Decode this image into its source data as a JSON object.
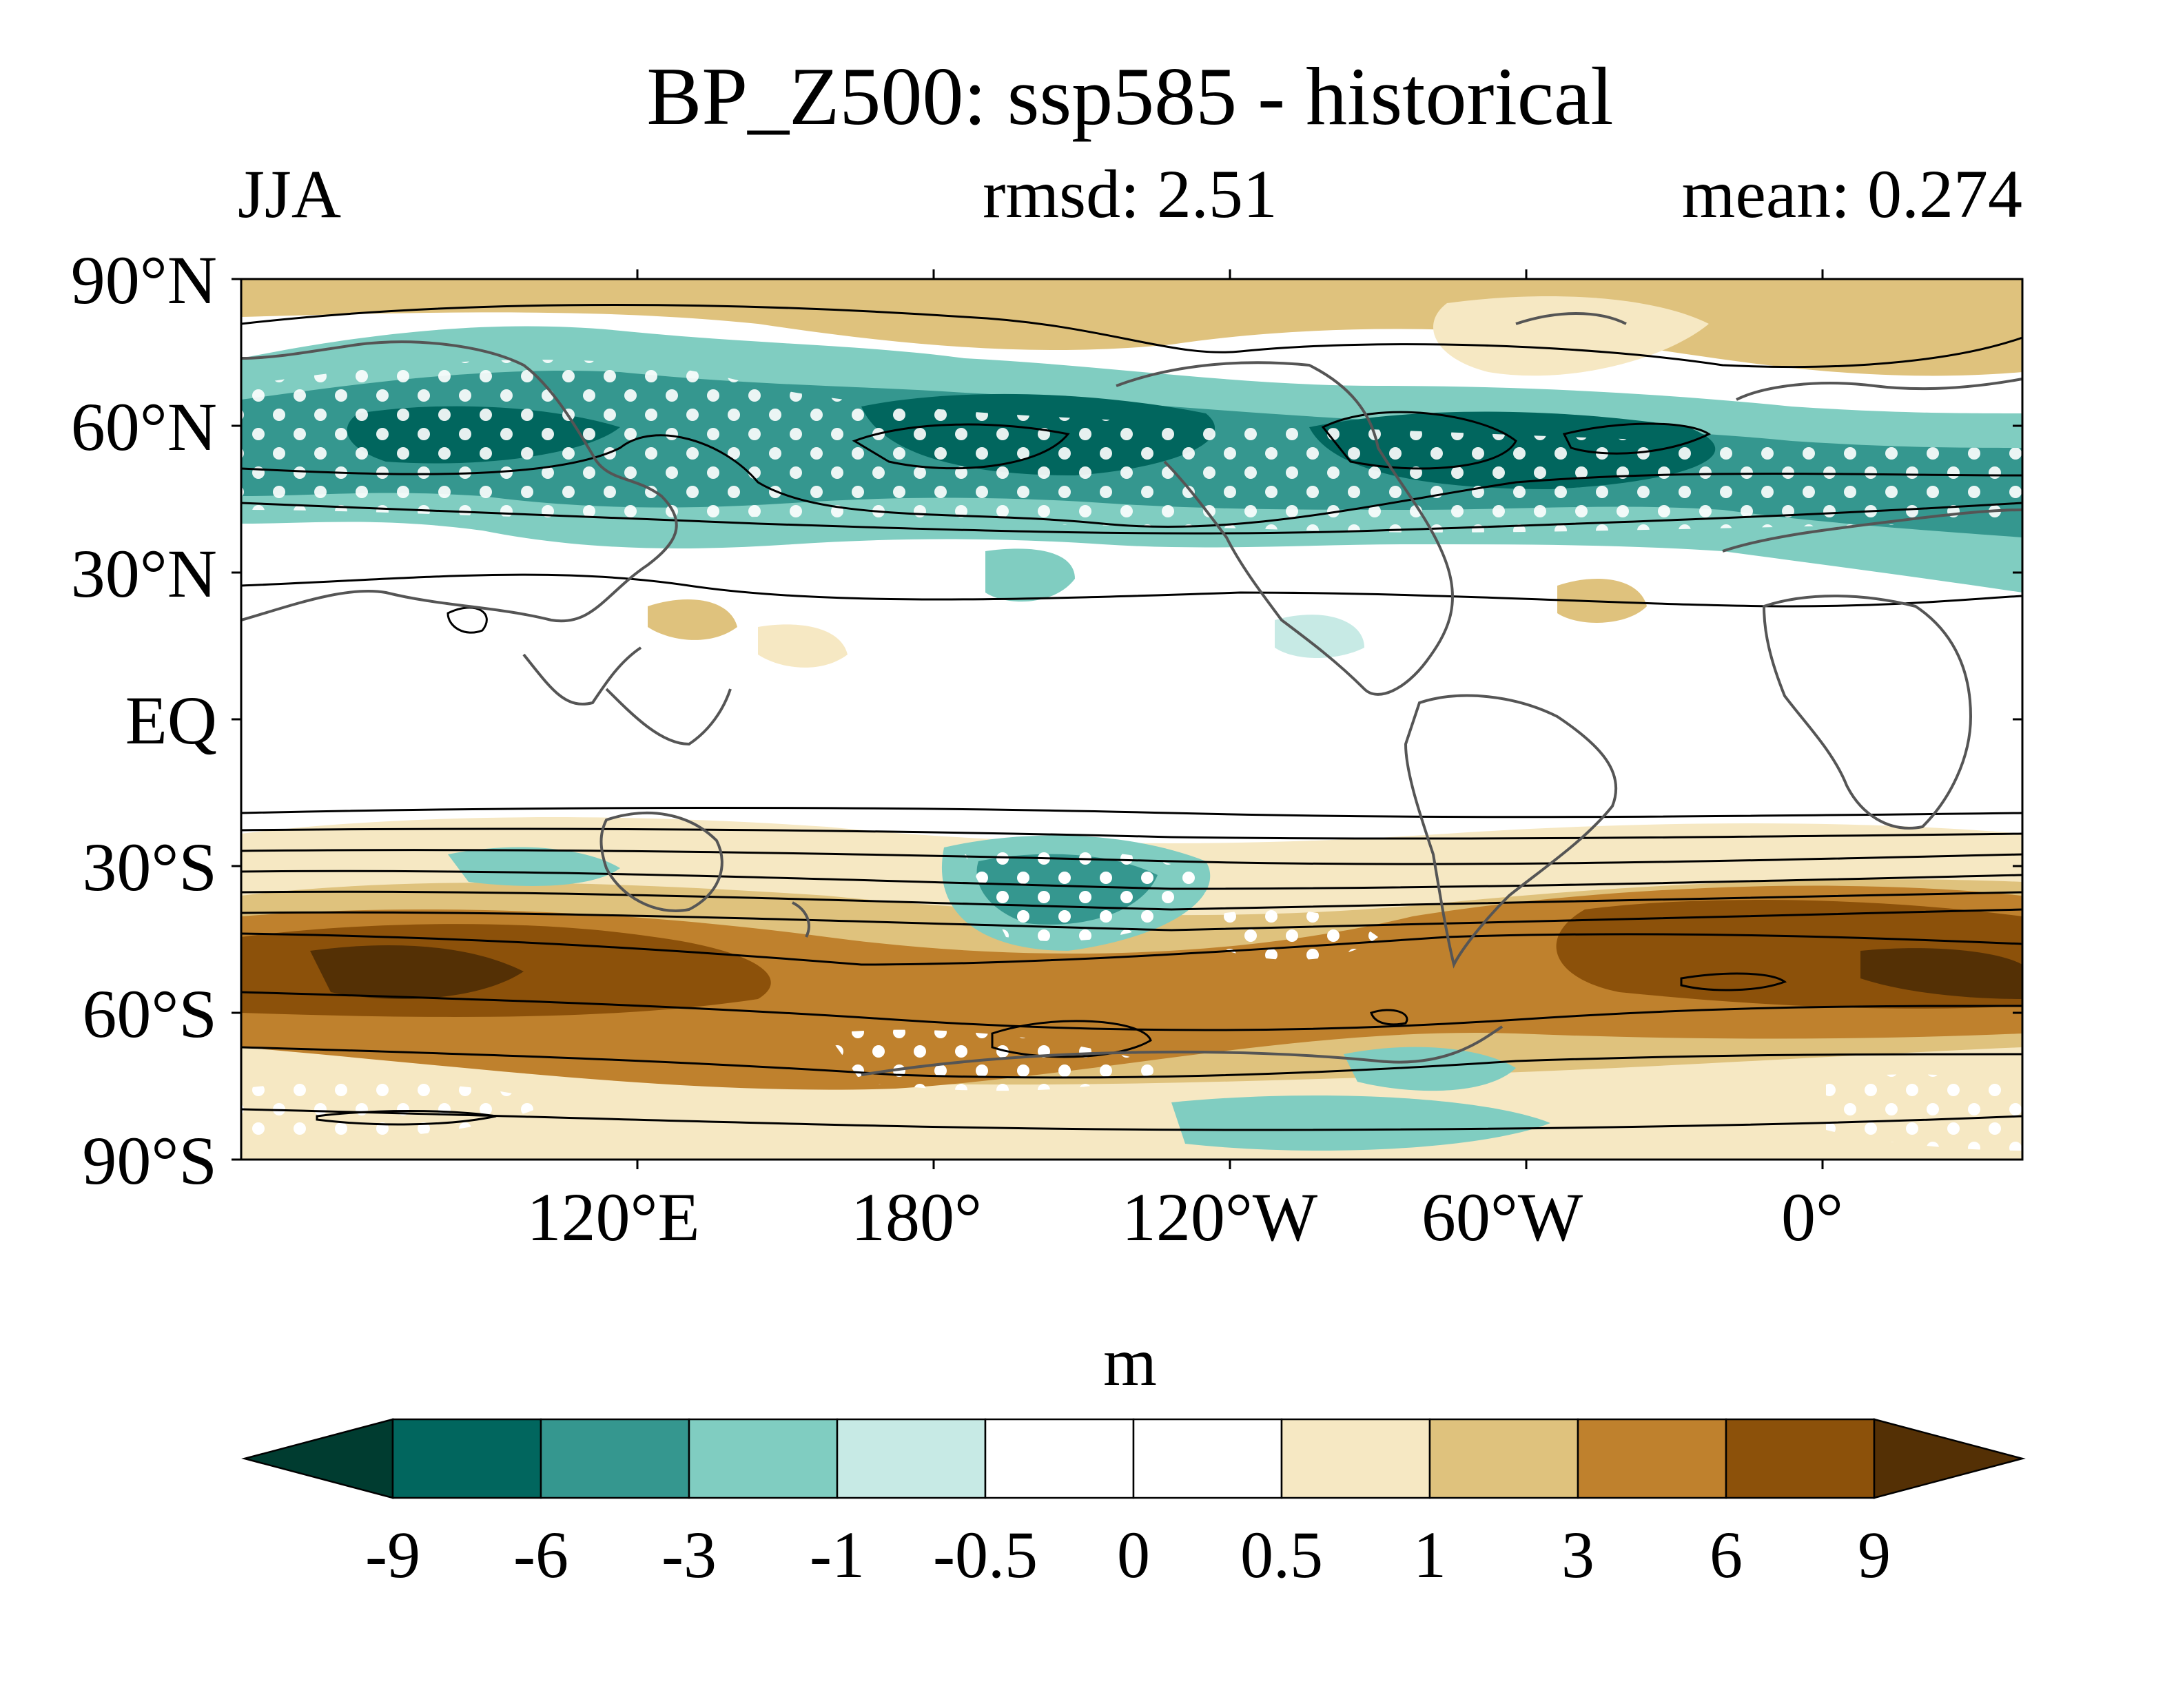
{
  "title": "BP_Z500: ssp585 - historical",
  "season": "JJA",
  "rmsd_label": "rmsd: 2.51",
  "mean_label": "mean: 0.274",
  "lat_ticks": [
    "90°N",
    "60°N",
    "30°N",
    "EQ",
    "30°S",
    "60°S",
    "90°S"
  ],
  "lon_ticks": [
    "120°E",
    "180°",
    "120°W",
    "60°W",
    "0°"
  ],
  "colorbar": {
    "unit": "m",
    "labels": [
      "-9",
      "-6",
      "-3",
      "-1",
      "-0.5",
      "0",
      "0.5",
      "1",
      "3",
      "6",
      "9"
    ],
    "colors": [
      "#003c30",
      "#01665e",
      "#35978f",
      "#80cdc1",
      "#c7eae5",
      "#ffffff",
      "#ffffff",
      "#f6e8c3",
      "#dfc27d",
      "#bf812d",
      "#8c510a",
      "#543005"
    ]
  },
  "map": {
    "projection": "cylindrical equidistant",
    "lon_range_note": "centered near 160°W",
    "stippling": "white dots mark significant regions",
    "contours": "black lines show historical climatology"
  }
}
